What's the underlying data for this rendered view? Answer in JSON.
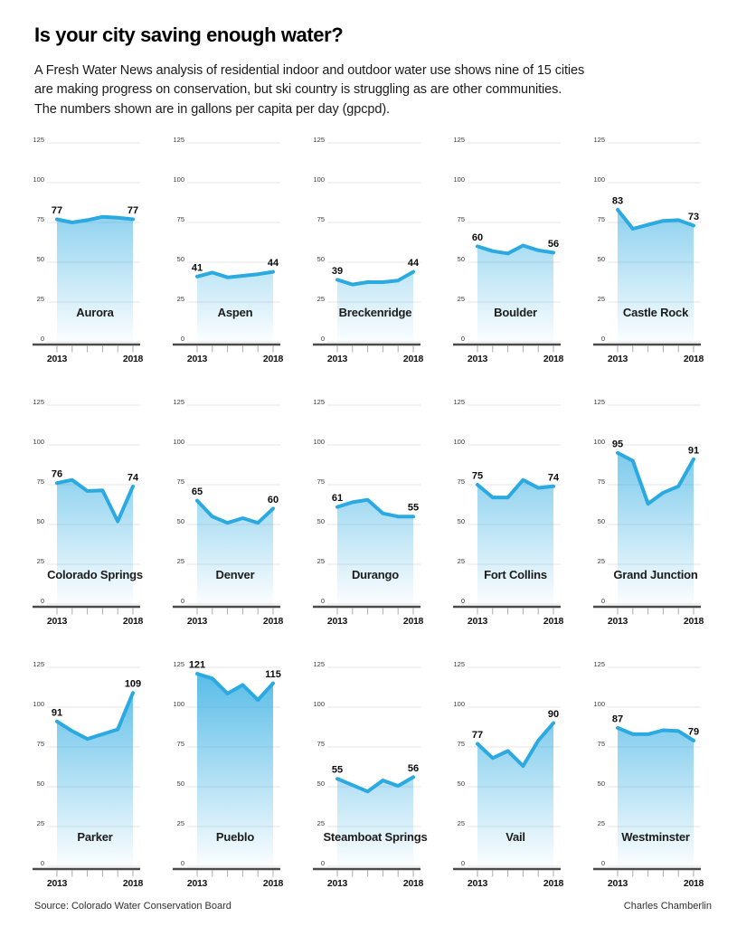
{
  "header": {
    "title": "Is your city saving enough water?",
    "subtitle_lines": [
      "A Fresh Water News analysis of residential indoor and outdoor water use shows nine of 15 cities",
      "are making progress on conservation, but ski country is struggling as are other communities.",
      "The numbers shown are in gallons per capita per day (gpcpd)."
    ]
  },
  "footer": {
    "source": "Source: Colorado Water Conservation Board",
    "credit": "Charles Chamberlin"
  },
  "chart_data": {
    "type": "area",
    "unit": "gpcpd",
    "x": [
      2013,
      2014,
      2015,
      2016,
      2017,
      2018
    ],
    "x_axis_labels": [
      "2013",
      "2018"
    ],
    "y_ticks": [
      0,
      25,
      50,
      75,
      100,
      125
    ],
    "ylim": [
      0,
      125
    ],
    "grid": true,
    "line_color": "#2BA9E1",
    "area_top_color": "#29A9E1",
    "series": [
      {
        "name": "Aurora",
        "values": [
          77,
          75,
          76.5,
          78.5,
          78,
          77
        ],
        "labels": {
          "start": 77,
          "end": 77
        }
      },
      {
        "name": "Aspen",
        "values": [
          41,
          43.5,
          40.5,
          41.5,
          42.5,
          44
        ],
        "labels": {
          "start": 41,
          "end": 44
        }
      },
      {
        "name": "Breckenridge",
        "values": [
          39,
          36,
          37.5,
          37.5,
          38.5,
          44
        ],
        "labels": {
          "start": 39,
          "end": 44
        }
      },
      {
        "name": "Boulder",
        "values": [
          60,
          57,
          55.5,
          60.5,
          57.5,
          56
        ],
        "labels": {
          "start": 60,
          "end": 56
        }
      },
      {
        "name": "Castle Rock",
        "values": [
          83,
          71,
          73.5,
          76,
          76.5,
          73
        ],
        "labels": {
          "start": 83,
          "end": 73
        }
      },
      {
        "name": "Colorado Springs",
        "values": [
          76,
          78,
          71,
          71.5,
          52,
          74
        ],
        "labels": {
          "start": 76,
          "end": 74
        }
      },
      {
        "name": "Denver",
        "values": [
          65,
          55,
          51,
          54,
          51,
          60
        ],
        "labels": {
          "start": 65,
          "end": 60
        }
      },
      {
        "name": "Durango",
        "values": [
          61,
          64,
          65.5,
          57,
          55,
          55
        ],
        "labels": {
          "start": 61,
          "end": 55
        }
      },
      {
        "name": "Fort Collins",
        "values": [
          75,
          67,
          67,
          78,
          73,
          74
        ],
        "labels": {
          "start": 75,
          "end": 74
        }
      },
      {
        "name": "Grand Junction",
        "values": [
          95,
          90,
          63,
          70,
          74,
          91
        ],
        "labels": {
          "start": 95,
          "end": 91
        }
      },
      {
        "name": "Parker",
        "values": [
          91,
          85,
          80,
          83,
          86,
          109
        ],
        "labels": {
          "start": 91,
          "end": 109
        }
      },
      {
        "name": "Pueblo",
        "values": [
          121,
          118,
          108.5,
          114,
          104.5,
          115
        ],
        "labels": {
          "start": 121,
          "end": 115
        }
      },
      {
        "name": "Steamboat Springs",
        "values": [
          55,
          51,
          47,
          54,
          50.5,
          56
        ],
        "labels": {
          "start": 55,
          "end": 56
        }
      },
      {
        "name": "Vail",
        "values": [
          77,
          68,
          72.5,
          63,
          79,
          90
        ],
        "labels": {
          "start": 77,
          "end": 90
        }
      },
      {
        "name": "Westminster",
        "values": [
          87,
          83,
          83,
          85.5,
          85,
          79
        ],
        "labels": {
          "start": 87,
          "end": 79
        }
      }
    ]
  }
}
